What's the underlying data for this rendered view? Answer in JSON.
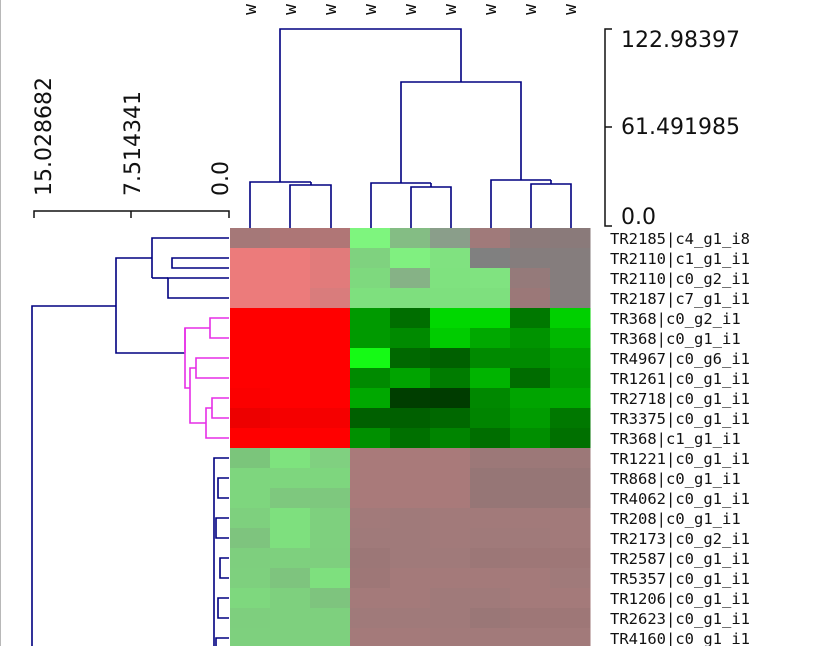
{
  "chart_data": {
    "type": "heatmap",
    "columns": [
      "w",
      "w",
      "w",
      "w",
      "w",
      "w",
      "w",
      "w",
      "w"
    ],
    "rows": [
      "TR2185|c4_g1_i8",
      "TR2110|c1_g1_i1",
      "TR2110|c0_g2_i1",
      "TR2187|c7_g1_i1",
      "TR368|c0_g2_i1",
      "TR368|c0_g1_i1",
      "TR4967|c0_g6_i1",
      "TR1261|c0_g1_i1",
      "TR2718|c0_g1_i1",
      "TR3375|c0_g1_i1",
      "TR368|c1_g1_i1",
      "TR1221|c0_g1_i1",
      "TR868|c0_g1_i1",
      "TR4062|c0_g1_i1",
      "TR208|c0_g1_i1",
      "TR2173|c0_g2_i1",
      "TR2587|c0_g1_i1",
      "TR5357|c0_g1_i1",
      "TR1206|c0_g1_i1",
      "TR2623|c0_g1_i1",
      "TR4160|c0_g1_i1"
    ],
    "cell_colors": [
      [
        "#a57878",
        "#ad7676",
        "#b07676",
        "#7ef57e",
        "#84bd84",
        "#8a9e8a",
        "#a07a7a",
        "#8c7a7a",
        "#8a7a7a"
      ],
      [
        "#ec7b7b",
        "#ec7b7b",
        "#e17b7b",
        "#7fd27f",
        "#80f080",
        "#80e280",
        "#808080",
        "#857d7d",
        "#857d7d"
      ],
      [
        "#ec7b7b",
        "#ec7b7b",
        "#e17b7b",
        "#7ed97e",
        "#86b286",
        "#7fe27f",
        "#80e380",
        "#957a7a",
        "#857d7d"
      ],
      [
        "#ec7b7b",
        "#ec7b7b",
        "#d97c7c",
        "#7ee07e",
        "#7edf7e",
        "#7ee07e",
        "#7ee07e",
        "#9b7878",
        "#857d7d"
      ],
      [
        "#ff0000",
        "#ff0000",
        "#ff0000",
        "#009a00",
        "#006e00",
        "#00d800",
        "#00d800",
        "#007800",
        "#00d000"
      ],
      [
        "#ff0000",
        "#ff0000",
        "#ff0000",
        "#009a00",
        "#008a00",
        "#00cc00",
        "#00a800",
        "#009300",
        "#00b800"
      ],
      [
        "#ff0000",
        "#ff0000",
        "#ff0000",
        "#15fa15",
        "#006800",
        "#006000",
        "#008a00",
        "#008a00",
        "#00a000"
      ],
      [
        "#ff0000",
        "#ff0000",
        "#ff0000",
        "#008a00",
        "#00a400",
        "#007c00",
        "#00b400",
        "#006c00",
        "#009a00"
      ],
      [
        "#fb0000",
        "#ff0000",
        "#ff0000",
        "#00a800",
        "#003e00",
        "#003c00",
        "#008800",
        "#00a400",
        "#00a800"
      ],
      [
        "#ed0000",
        "#f50000",
        "#f50000",
        "#006000",
        "#006000",
        "#006800",
        "#008400",
        "#009c00",
        "#007800"
      ],
      [
        "#ff0000",
        "#ff0000",
        "#ff0000",
        "#009000",
        "#007000",
        "#008400",
        "#006e00",
        "#008e00",
        "#007000"
      ],
      [
        "#7bc57b",
        "#7ee37e",
        "#80d080",
        "#a97a7a",
        "#a97a7a",
        "#a97a7a",
        "#9c7878",
        "#9c7878",
        "#9c7878"
      ],
      [
        "#7ed67e",
        "#7ed67e",
        "#7ed67e",
        "#a97a7a",
        "#a97a7a",
        "#a97a7a",
        "#967676",
        "#967676",
        "#967676"
      ],
      [
        "#7ed67e",
        "#7ec87e",
        "#7ec87e",
        "#a97a7a",
        "#a97a7a",
        "#a97a7a",
        "#967676",
        "#967676",
        "#967676"
      ],
      [
        "#7ed07e",
        "#7ee07e",
        "#7ed07e",
        "#a27a7a",
        "#a07a7a",
        "#a27a7a",
        "#a27a7a",
        "#a27a7a",
        "#a27a7a"
      ],
      [
        "#7ec47e",
        "#7ee07e",
        "#7ed07e",
        "#a07a7a",
        "#a07a7a",
        "#a27a7a",
        "#a07a7a",
        "#a07a7a",
        "#a27a7a"
      ],
      [
        "#7ecf7e",
        "#7ed07e",
        "#7ecf7e",
        "#9c7777",
        "#a07a7a",
        "#a07a7a",
        "#9c7777",
        "#9e7777",
        "#9e7777"
      ],
      [
        "#7ed07e",
        "#7ec47e",
        "#7ee07e",
        "#9e7777",
        "#a47a7a",
        "#a47a7a",
        "#a47a7a",
        "#a47a7a",
        "#a07a7a"
      ],
      [
        "#7ed87e",
        "#7ed07e",
        "#7ec47e",
        "#a47a7a",
        "#a47a7a",
        "#a07a7a",
        "#a07a7a",
        "#a47a7a",
        "#a47a7a"
      ],
      [
        "#7ecf7e",
        "#7ed07e",
        "#7ed07e",
        "#a07a7a",
        "#a07a7a",
        "#a07a7a",
        "#9a7777",
        "#9e7777",
        "#9e7777"
      ],
      [
        "#7ed07e",
        "#7ed07e",
        "#7ed07e",
        "#a47a7a",
        "#a47a7a",
        "#a27a7a",
        "#a27a7a",
        "#a27a7a",
        "#a27a7a"
      ]
    ],
    "row_scale_ticks": [
      "15.028682",
      "7.514341",
      "0.0"
    ],
    "col_scale_ticks": [
      "122.98397",
      "61.491985",
      "0.0"
    ],
    "colors": {
      "dendrogram": "#000080",
      "highlight_cluster": "#e62ee6",
      "text": "#111111"
    }
  }
}
